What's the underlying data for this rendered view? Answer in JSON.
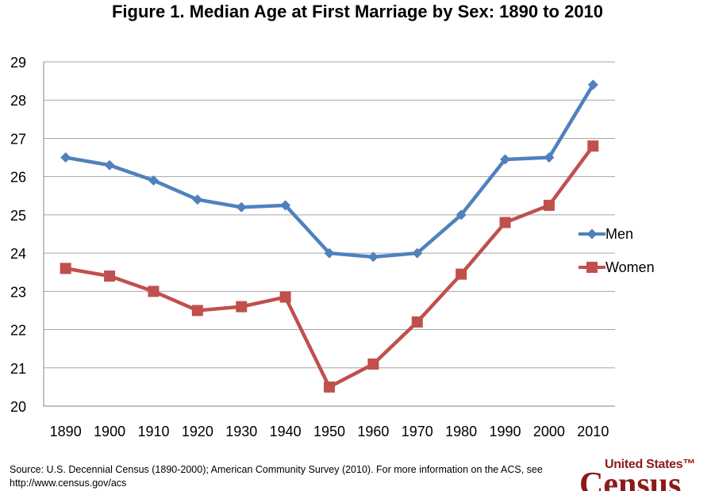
{
  "title": "Figure 1.  Median Age at First Marriage by Sex:  1890 to 2010",
  "source_note": "Source:  U.S. Decennial Census (1890-2000); American Community Survey (2010). For more information on the ACS, see http://www.census.gov/acs",
  "logo": {
    "top_text": "United States™",
    "main_text": "Census"
  },
  "colors": {
    "men": "#4f81bd",
    "women": "#c0504d",
    "grid": "#a6a6a6"
  },
  "chart_data": {
    "type": "line",
    "title": "Figure 1.  Median Age at First Marriage by Sex:  1890 to 2010",
    "xlabel": "",
    "ylabel": "",
    "categories": [
      "1890",
      "1900",
      "1910",
      "1920",
      "1930",
      "1940",
      "1950",
      "1960",
      "1970",
      "1980",
      "1990",
      "2000",
      "2010"
    ],
    "ylim": [
      20,
      29
    ],
    "yticks": [
      "20",
      "21",
      "22",
      "23",
      "24",
      "25",
      "26",
      "27",
      "28",
      "29"
    ],
    "grid": true,
    "legend_position": "right",
    "series": [
      {
        "name": "Men",
        "marker": "diamond",
        "color": "#4f81bd",
        "values": [
          26.5,
          26.3,
          25.9,
          25.4,
          25.2,
          25.25,
          24.0,
          23.9,
          24.0,
          25.0,
          26.45,
          26.5,
          28.4
        ]
      },
      {
        "name": "Women",
        "marker": "square",
        "color": "#c0504d",
        "values": [
          23.6,
          23.4,
          23.0,
          22.5,
          22.6,
          22.85,
          20.5,
          21.1,
          22.2,
          23.45,
          24.8,
          25.25,
          26.8
        ]
      }
    ]
  }
}
